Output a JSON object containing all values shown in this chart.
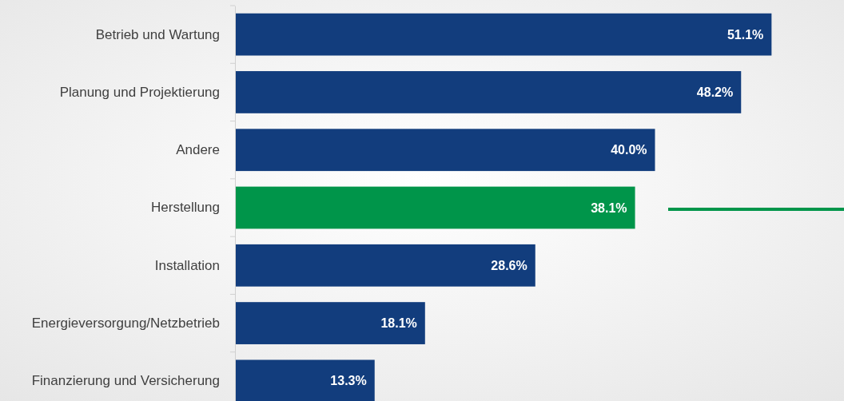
{
  "chart_data": {
    "type": "bar",
    "orientation": "horizontal",
    "categories": [
      "Betrieb und Wartung",
      "Planung und Projektierung",
      "Andere",
      "Herstellung",
      "Installation",
      "Energieversorgung/Netzbetrieb",
      "Finanzierung und Versicherung"
    ],
    "values": [
      51.1,
      48.2,
      40.0,
      38.1,
      28.6,
      18.1,
      13.3
    ],
    "colors": [
      "#123d7d",
      "#123d7d",
      "#123d7d",
      "#00954a",
      "#123d7d",
      "#123d7d",
      "#123d7d"
    ],
    "value_labels": [
      "51.1%",
      "48.2%",
      "40.0%",
      "38.1%",
      "28.6%",
      "18.1%",
      "13.3%"
    ],
    "xlim": [
      0,
      58
    ],
    "tick_labels": "y"
  }
}
